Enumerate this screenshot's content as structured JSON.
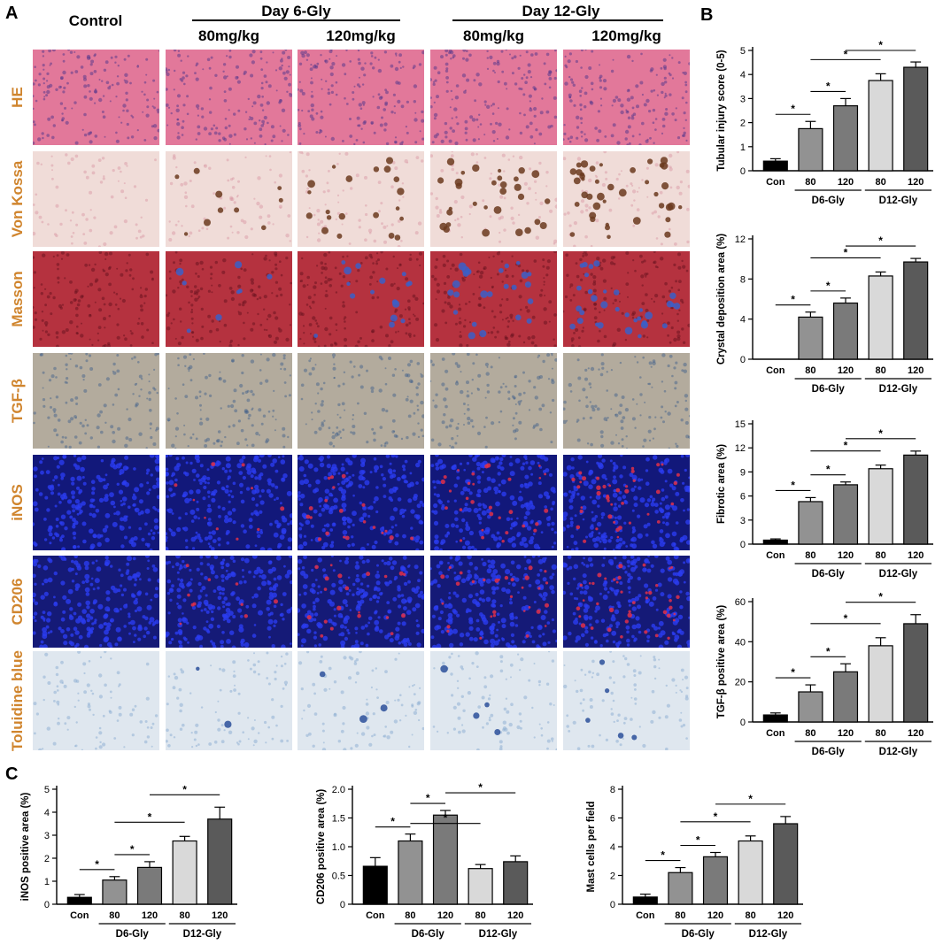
{
  "figure": {
    "panel_letters": {
      "a": "A",
      "b": "B",
      "c": "C"
    },
    "control_header": "Control",
    "group_headers": [
      {
        "label": "Day 6-Gly",
        "doses": [
          "80mg/kg",
          "120mg/kg"
        ]
      },
      {
        "label": "Day 12-Gly",
        "doses": [
          "80mg/kg",
          "120mg/kg"
        ]
      }
    ],
    "row_labels": [
      "HE",
      "Von Kossa",
      "Masson",
      "TGF-β",
      "iNOS",
      "CD206",
      "Toluidine blue"
    ],
    "stain_colors": {
      "HE": "#e2789a",
      "Von Kossa": "#f0dcd8",
      "Masson": "#b5323f",
      "TGF-β": "#b3ab9d",
      "iNOS": "#12187a",
      "CD206": "#151a77",
      "Toluidine blue": "#dfe7ef"
    },
    "row_label_color": "#d0852e",
    "bar_colors": [
      "#000000",
      "#929292",
      "#7a7a7a",
      "#d9d9d9",
      "#5a5a5a"
    ]
  },
  "chart_data": [
    {
      "panel": "B",
      "type": "bar",
      "ylabel": "Tubular injury score (0-5)",
      "ylim": [
        0,
        5
      ],
      "yticks": [
        "0",
        "1",
        "2",
        "3",
        "4",
        "5"
      ],
      "categories": [
        "Con",
        "80",
        "120",
        "80",
        "120"
      ],
      "groups": [
        "D6-Gly",
        "D12-Gly"
      ],
      "values": [
        0.4,
        1.75,
        2.7,
        3.75,
        4.3
      ],
      "errors": [
        0.1,
        0.3,
        0.3,
        0.28,
        0.22
      ],
      "sig": "*"
    },
    {
      "panel": "B",
      "type": "bar",
      "ylabel": "Crystal deposition area (%)",
      "ylim": [
        0,
        12
      ],
      "yticks": [
        "0",
        "4",
        "8",
        "12"
      ],
      "categories": [
        "Con",
        "80",
        "120",
        "80",
        "120"
      ],
      "groups": [
        "D6-Gly",
        "D12-Gly"
      ],
      "values": [
        0,
        4.2,
        5.6,
        8.3,
        9.7
      ],
      "errors": [
        0,
        0.5,
        0.5,
        0.4,
        0.35
      ],
      "sig": "*"
    },
    {
      "panel": "B",
      "type": "bar",
      "ylabel": "Fibrotic area (%)",
      "ylim": [
        0,
        15
      ],
      "yticks": [
        "0",
        "3",
        "6",
        "9",
        "12",
        "15"
      ],
      "categories": [
        "Con",
        "80",
        "120",
        "80",
        "120"
      ],
      "groups": [
        "D6-Gly",
        "D12-Gly"
      ],
      "values": [
        0.5,
        5.3,
        7.4,
        9.4,
        11.1
      ],
      "errors": [
        0.15,
        0.5,
        0.35,
        0.45,
        0.5
      ],
      "sig": "*"
    },
    {
      "panel": "B",
      "type": "bar",
      "ylabel": "TGF-β positive area (%)",
      "ylim": [
        0,
        60
      ],
      "yticks": [
        "0",
        "20",
        "40",
        "60"
      ],
      "categories": [
        "Con",
        "80",
        "120",
        "80",
        "120"
      ],
      "groups": [
        "D6-Gly",
        "D12-Gly"
      ],
      "values": [
        3.5,
        15,
        25,
        38,
        49
      ],
      "errors": [
        1,
        3.5,
        4,
        4,
        4.5
      ],
      "sig": "*"
    },
    {
      "panel": "C",
      "type": "bar",
      "ylabel": "iNOS positive area (%)",
      "ylim": [
        0,
        5
      ],
      "yticks": [
        "0",
        "1",
        "2",
        "3",
        "4",
        "5"
      ],
      "categories": [
        "Con",
        "80",
        "120",
        "80",
        "120"
      ],
      "groups": [
        "D6-Gly",
        "D12-Gly"
      ],
      "values": [
        0.3,
        1.05,
        1.6,
        2.75,
        3.7
      ],
      "errors": [
        0.12,
        0.15,
        0.25,
        0.2,
        0.52
      ],
      "sig": "*"
    },
    {
      "panel": "C",
      "type": "bar",
      "ylabel": "CD206 positive area (%)",
      "ylim": [
        0,
        2
      ],
      "yticks": [
        "0",
        "0.5",
        "1.0",
        "1.5",
        "2.0"
      ],
      "categories": [
        "Con",
        "80",
        "120",
        "80",
        "120"
      ],
      "groups": [
        "D6-Gly",
        "D12-Gly"
      ],
      "values": [
        0.66,
        1.1,
        1.55,
        0.62,
        0.74
      ],
      "errors": [
        0.15,
        0.12,
        0.08,
        0.07,
        0.1
      ],
      "sig": "*"
    },
    {
      "panel": "C",
      "type": "bar",
      "ylabel": "Mast cells per field",
      "ylim": [
        0,
        8
      ],
      "yticks": [
        "0",
        "2",
        "4",
        "6",
        "8"
      ],
      "categories": [
        "Con",
        "80",
        "120",
        "80",
        "120"
      ],
      "groups": [
        "D6-Gly",
        "D12-Gly"
      ],
      "values": [
        0.5,
        2.2,
        3.3,
        4.4,
        5.6
      ],
      "errors": [
        0.2,
        0.35,
        0.3,
        0.35,
        0.5
      ],
      "sig": "*"
    }
  ]
}
